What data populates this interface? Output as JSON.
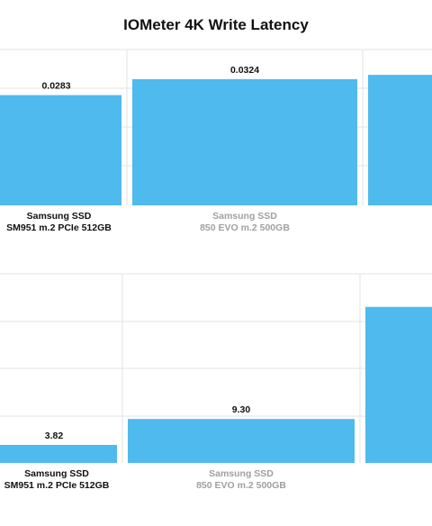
{
  "title": "IOMeter 4K Write Latency",
  "colors": {
    "bar": "#4fbaee",
    "grid": "#e3e3e3",
    "active_label": "#111111",
    "muted_label": "#a0a0a0"
  },
  "chart_data": [
    {
      "type": "bar",
      "categories": [
        [
          "Samsung SSD",
          "SM951 m.2 PCIe 512GB"
        ],
        [
          "Samsung SSD",
          "850 EVO m.2 500GB"
        ],
        [
          "",
          ""
        ]
      ],
      "values": [
        0.0283,
        0.0324,
        0.0335
      ],
      "data_labels": [
        "0.0283",
        "0.0324",
        ""
      ],
      "highlight_index": 0,
      "ylim": [
        0,
        0.04
      ],
      "grid": true
    },
    {
      "type": "bar",
      "categories": [
        [
          "Samsung SSD",
          "SM951 m.2 PCIe 512GB"
        ],
        [
          "Samsung SSD",
          "850 EVO m.2 500GB"
        ],
        [
          "",
          ""
        ]
      ],
      "values": [
        3.82,
        9.3,
        33.0
      ],
      "data_labels": [
        "3.82",
        "9.30",
        ""
      ],
      "highlight_index": 0,
      "ylim": [
        0,
        40
      ],
      "grid": true
    }
  ]
}
